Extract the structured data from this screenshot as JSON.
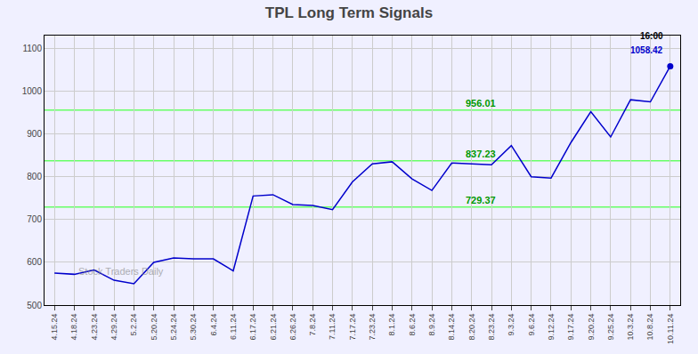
{
  "chart_data": {
    "type": "line",
    "title": "TPL Long Term Signals",
    "categories": [
      "4.15.24",
      "4.18.24",
      "4.23.24",
      "4.29.24",
      "5.2.24",
      "5.20.24",
      "5.24.24",
      "5.30.24",
      "6.4.24",
      "6.11.24",
      "6.17.24",
      "6.21.24",
      "6.26.24",
      "7.8.24",
      "7.11.24",
      "7.17.24",
      "7.23.24",
      "8.1.24",
      "8.6.24",
      "8.9.24",
      "8.14.24",
      "8.20.24",
      "8.23.24",
      "9.3.24",
      "9.6.24",
      "9.12.24",
      "9.17.24",
      "9.20.24",
      "9.25.24",
      "10.3.24",
      "10.8.24",
      "10.11.24"
    ],
    "values": [
      575,
      572,
      582,
      558,
      550,
      600,
      610,
      608,
      608,
      580,
      755,
      758,
      735,
      733,
      723,
      788,
      830,
      835,
      795,
      768,
      832,
      830,
      828,
      873,
      800,
      797,
      880,
      952,
      893,
      980,
      975,
      1058.42
    ],
    "color": "#0000cc",
    "ylim": [
      500,
      1130
    ],
    "yticks": [
      500,
      600,
      700,
      800,
      900,
      1000,
      1100
    ],
    "grid": true,
    "grid_color": "#cccccc",
    "background_color": "#f0f0ff",
    "hlines": [
      {
        "value": 729.37,
        "label": "729.37"
      },
      {
        "value": 837.23,
        "label": "837.23"
      },
      {
        "value": 956.01,
        "label": "956.01"
      }
    ],
    "hline_color": "#66ff66",
    "hline_label_color": "#009900",
    "last_point_labels": [
      {
        "text": "16:00",
        "color": "#000000"
      },
      {
        "text": "1058.42",
        "color": "#0000cc"
      }
    ],
    "watermark": "Stock Traders Daily"
  }
}
